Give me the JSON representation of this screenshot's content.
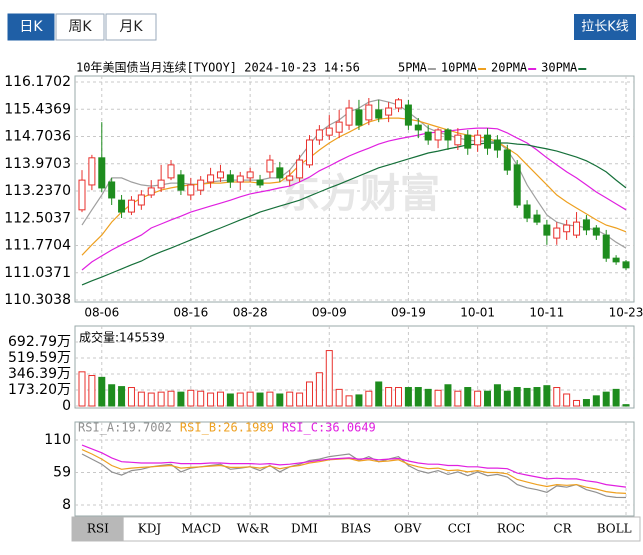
{
  "tabs": [
    "日K",
    "周K",
    "月K"
  ],
  "active_tab": 0,
  "button": "拉长K线",
  "indicator_tabs": [
    "RSI",
    "KDJ",
    "MACD",
    "W&R",
    "DMI",
    "BIAS",
    "OBV",
    "CCI",
    "ROC",
    "CR",
    "BOLL"
  ],
  "active_indicator": 0,
  "chart_data": [
    {
      "type": "candlestick",
      "title": "10年美国债当月连续[TYOOY] 2024-10-23 14:56",
      "watermark": "东方财富",
      "up_color": "#e8302c",
      "down_color": "#1e8c1e",
      "categories": [
        null,
        null,
        "08-06",
        null,
        null,
        null,
        null,
        null,
        null,
        null,
        null,
        "08-16",
        null,
        null,
        null,
        null,
        null,
        "08-28",
        null,
        null,
        null,
        null,
        null,
        null,
        null,
        "09-09",
        null,
        null,
        null,
        null,
        null,
        null,
        null,
        "09-19",
        null,
        null,
        null,
        null,
        null,
        null,
        "10-01",
        null,
        null,
        null,
        null,
        null,
        null,
        "10-11",
        null,
        null,
        null,
        null,
        null,
        null,
        null,
        "10-23"
      ],
      "open": [
        112.73,
        113.4,
        114.13,
        113.48,
        112.99,
        112.67,
        112.86,
        113.13,
        113.32,
        113.59,
        113.67,
        113.13,
        113.26,
        113.48,
        113.59,
        113.67,
        113.48,
        113.59,
        113.53,
        113.75,
        113.86,
        113.53,
        113.59,
        113.94,
        114.61,
        114.74,
        114.82,
        115.01,
        115.42,
        115.15,
        115.42,
        115.28,
        115.47,
        115.55,
        115.01,
        114.82,
        114.61,
        114.88,
        114.48,
        114.74,
        114.48,
        114.74,
        114.61,
        114.34,
        113.94,
        112.86,
        112.59,
        112.32,
        111.97,
        112.14,
        112.05,
        112.46,
        112.24,
        112.05,
        111.43,
        111.33
      ],
      "close": [
        113.53,
        114.13,
        113.32,
        113.05,
        112.67,
        112.99,
        113.13,
        113.32,
        113.53,
        113.94,
        113.26,
        113.4,
        113.53,
        113.67,
        113.75,
        113.48,
        113.64,
        113.75,
        113.4,
        114.07,
        113.59,
        113.64,
        114.07,
        114.61,
        114.88,
        114.93,
        115.09,
        115.47,
        115.01,
        115.55,
        115.2,
        115.47,
        115.69,
        115.01,
        114.88,
        114.61,
        114.88,
        114.61,
        114.74,
        114.39,
        114.74,
        114.39,
        114.34,
        113.8,
        112.86,
        112.51,
        112.4,
        112.05,
        112.24,
        112.32,
        112.4,
        112.19,
        112.05,
        111.43,
        111.33,
        111.17
      ],
      "high": [
        113.8,
        114.21,
        115.09,
        113.59,
        113.13,
        113.1,
        113.26,
        113.53,
        113.94,
        114.07,
        113.8,
        113.59,
        113.64,
        113.86,
        113.94,
        113.8,
        113.75,
        113.86,
        113.67,
        114.21,
        114.02,
        113.8,
        114.21,
        114.74,
        115.01,
        115.28,
        115.42,
        115.69,
        115.69,
        115.74,
        115.69,
        115.63,
        115.74,
        115.69,
        115.2,
        115.01,
        114.93,
        114.93,
        114.93,
        114.88,
        114.88,
        114.93,
        114.74,
        114.48,
        114.07,
        112.99,
        112.73,
        112.46,
        112.4,
        112.46,
        112.67,
        112.59,
        112.32,
        112.19,
        111.51,
        111.38
      ],
      "low": [
        112.67,
        113.26,
        113.21,
        112.86,
        112.51,
        112.59,
        112.73,
        113.05,
        113.21,
        113.53,
        113.13,
        112.99,
        113.13,
        113.32,
        113.48,
        113.32,
        113.26,
        113.48,
        113.32,
        113.59,
        113.48,
        113.37,
        113.48,
        113.86,
        114.48,
        114.61,
        114.66,
        114.88,
        114.88,
        115.01,
        115.09,
        115.09,
        115.36,
        114.88,
        114.66,
        114.48,
        114.39,
        114.34,
        114.34,
        114.21,
        114.29,
        114.21,
        114.13,
        113.67,
        112.78,
        112.4,
        112.32,
        111.79,
        111.79,
        111.92,
        111.97,
        112.05,
        111.92,
        111.33,
        111.25,
        111.11
      ],
      "series": [
        {
          "name": "5PMA",
          "color": "#a0a0a0",
          "values": [
            112.32,
            112.73,
            113.13,
            113.59,
            113.59,
            113.48,
            113.4,
            113.37,
            113.4,
            113.45,
            113.45,
            113.42,
            113.42,
            113.48,
            113.51,
            113.53,
            113.53,
            113.53,
            113.53,
            113.59,
            113.59,
            113.8,
            114.13,
            114.48,
            114.82,
            115.01,
            115.15,
            115.36,
            115.47,
            115.63,
            115.69,
            115.63,
            115.55,
            115.36,
            115.15,
            114.93,
            114.82,
            114.74,
            114.66,
            114.61,
            114.58,
            114.58,
            114.56,
            114.34,
            113.94,
            113.4,
            112.99,
            112.59,
            112.4,
            112.32,
            112.3,
            112.24,
            112.19,
            112.05,
            111.86,
            111.7
          ]
        },
        {
          "name": "10PMA",
          "color": "#eea020",
          "values": [
            111.51,
            111.79,
            112.05,
            112.4,
            112.67,
            112.89,
            113.05,
            113.16,
            113.26,
            113.32,
            113.37,
            113.4,
            113.42,
            113.45,
            113.45,
            113.48,
            113.48,
            113.48,
            113.45,
            113.45,
            113.48,
            113.67,
            113.94,
            114.13,
            114.34,
            114.53,
            114.69,
            114.82,
            114.96,
            115.09,
            115.17,
            115.2,
            115.2,
            115.17,
            115.12,
            115.04,
            114.96,
            114.88,
            114.8,
            114.74,
            114.69,
            114.66,
            114.56,
            114.39,
            114.21,
            113.94,
            113.67,
            113.4,
            113.13,
            112.94,
            112.78,
            112.62,
            112.46,
            112.32,
            112.24,
            112.14
          ]
        },
        {
          "name": "20PMA",
          "color": "#e020e0",
          "values": [
            111.11,
            111.33,
            111.49,
            111.65,
            111.79,
            111.92,
            112.05,
            112.24,
            112.35,
            112.46,
            112.56,
            112.67,
            112.75,
            112.83,
            112.91,
            112.99,
            113.08,
            113.16,
            113.21,
            113.26,
            113.32,
            113.37,
            113.48,
            113.61,
            113.78,
            113.91,
            114.05,
            114.18,
            114.29,
            114.39,
            114.5,
            114.58,
            114.64,
            114.69,
            114.74,
            114.8,
            114.82,
            114.85,
            114.88,
            114.91,
            114.93,
            114.93,
            114.91,
            114.8,
            114.66,
            114.53,
            114.34,
            114.13,
            113.94,
            113.75,
            113.59,
            113.4,
            113.21,
            113.05,
            112.89,
            112.73
          ]
        },
        {
          "name": "30PMA",
          "color": "#16703a",
          "values": [
            110.71,
            110.82,
            110.92,
            111.03,
            111.14,
            111.25,
            111.35,
            111.49,
            111.6,
            111.7,
            111.81,
            111.92,
            112.03,
            112.14,
            112.24,
            112.35,
            112.46,
            112.56,
            112.67,
            112.75,
            112.83,
            112.91,
            112.99,
            113.1,
            113.21,
            113.32,
            113.42,
            113.53,
            113.64,
            113.75,
            113.86,
            113.94,
            114.02,
            114.1,
            114.18,
            114.26,
            114.31,
            114.37,
            114.42,
            114.48,
            114.5,
            114.53,
            114.53,
            114.53,
            114.5,
            114.48,
            114.42,
            114.37,
            114.31,
            114.23,
            114.15,
            114.05,
            113.91,
            113.75,
            113.53,
            113.32
          ]
        }
      ],
      "ylim": [
        110.3038,
        116.1702
      ],
      "yticks": [
        116.1702,
        115.4369,
        114.7036,
        113.9703,
        {
          "value": 113.237,
          "label": "113.2370"
        },
        112.5037,
        111.7704,
        111.0371,
        110.3038
      ],
      "grid": true
    },
    {
      "type": "bar",
      "title": "成交量:145539",
      "values": [
        370,
        330,
        310,
        230,
        210,
        200,
        150,
        140,
        150,
        160,
        150,
        170,
        160,
        140,
        150,
        130,
        140,
        150,
        140,
        150,
        130,
        150,
        140,
        260,
        360,
        600,
        180,
        110,
        120,
        160,
        260,
        200,
        200,
        200,
        200,
        180,
        170,
        230,
        160,
        200,
        160,
        160,
        230,
        160,
        200,
        190,
        200,
        220,
        200,
        130,
        60,
        70,
        110,
        150,
        180,
        14.5539
      ],
      "ylim": [
        0,
        844.4
      ],
      "yticks": [
        {
          "value": 692.79,
          "label": "692.79万"
        },
        {
          "value": 519.59,
          "label": "519.59万"
        },
        {
          "value": 346.39,
          "label": "346.39万"
        },
        {
          "value": 173.2,
          "label": "173.20万"
        },
        0
      ],
      "grid": true
    },
    {
      "type": "line",
      "series": [
        {
          "name": "RSI_A:19.7002",
          "color": "#909090",
          "values": [
            88,
            80,
            72,
            60,
            55,
            62,
            64,
            68,
            70,
            72,
            60,
            66,
            68,
            70,
            72,
            64,
            66,
            68,
            62,
            70,
            60,
            68,
            72,
            78,
            80,
            84,
            86,
            88,
            78,
            84,
            76,
            80,
            84,
            70,
            62,
            58,
            62,
            56,
            60,
            54,
            60,
            54,
            56,
            52,
            40,
            35,
            32,
            28,
            38,
            36,
            40,
            32,
            28,
            22,
            20,
            19.7002
          ]
        },
        {
          "name": "RSI_B:26.1989",
          "color": "#eea020",
          "values": [
            95,
            88,
            80,
            70,
            64,
            66,
            67,
            68,
            69,
            70,
            66,
            67,
            68,
            69,
            70,
            67,
            67,
            68,
            66,
            69,
            65,
            68,
            70,
            74,
            76,
            79,
            80,
            81,
            77,
            79,
            76,
            77,
            79,
            72,
            68,
            65,
            66,
            62,
            63,
            60,
            62,
            59,
            59,
            57,
            48,
            44,
            40,
            37,
            40,
            39,
            40,
            36,
            33,
            29,
            27,
            26.1989
          ]
        },
        {
          "name": "RSI_C:36.0649",
          "color": "#e020e0",
          "values": [
            102,
            96,
            90,
            82,
            76,
            75,
            74,
            74,
            74,
            75,
            73,
            73,
            73,
            74,
            74,
            73,
            73,
            73,
            72,
            73,
            71,
            72,
            74,
            76,
            78,
            80,
            81,
            82,
            80,
            81,
            79,
            80,
            81,
            77,
            74,
            72,
            72,
            70,
            70,
            68,
            68,
            66,
            66,
            65,
            58,
            55,
            52,
            49,
            50,
            49,
            49,
            46,
            44,
            40,
            38,
            36.0649
          ]
        }
      ],
      "ylim": [
        -7.7,
        122.6
      ],
      "yticks": [
        110,
        59,
        8
      ],
      "grid": true
    }
  ]
}
